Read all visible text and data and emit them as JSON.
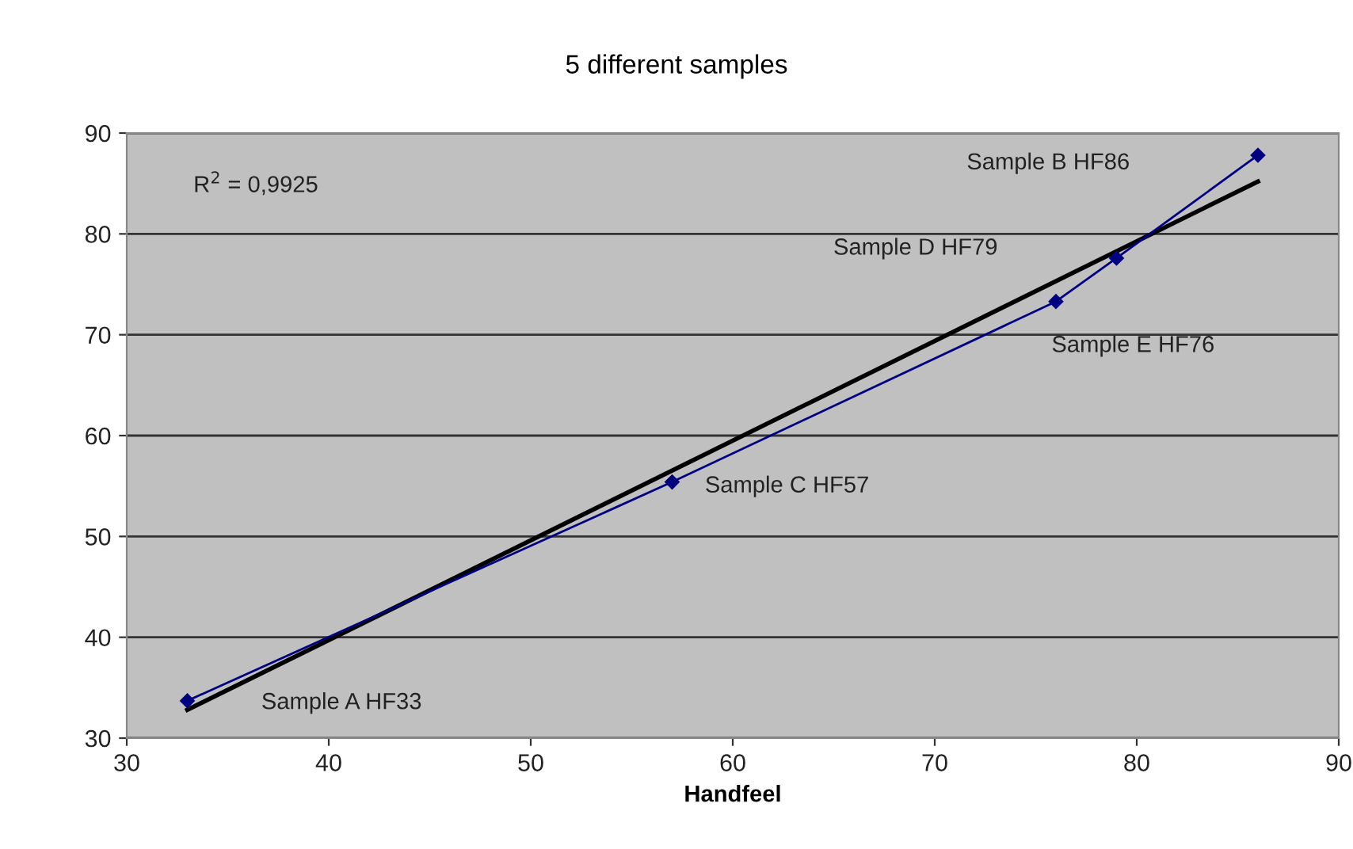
{
  "chart_data": {
    "type": "line",
    "title": "5 different samples",
    "xlabel": "Handfeel",
    "x": [
      33,
      57,
      76,
      79,
      86
    ],
    "series": [
      {
        "color": "#000080",
        "values": [
          33.7,
          55.4,
          73.3,
          77.6,
          87.8
        ],
        "marker": "diamond"
      },
      {
        "color": "#000000",
        "x": [
          33,
          86
        ],
        "values": [
          32.8,
          85.2
        ],
        "marker": "none"
      }
    ],
    "xlim": [
      30,
      90
    ],
    "xticks": [
      30,
      40,
      50,
      60,
      70,
      80,
      90
    ],
    "ylim": [
      30,
      90
    ],
    "yticks": [
      30,
      40,
      50,
      60,
      70,
      80,
      90
    ],
    "grid": "y",
    "line_style": "solid",
    "annotations": [
      "R$^{2}$ = 0,9925",
      "Sample A HF33",
      "Sample C HF57",
      "Sample E HF76",
      "Sample D HF79",
      "Sample B HF86"
    ]
  }
}
